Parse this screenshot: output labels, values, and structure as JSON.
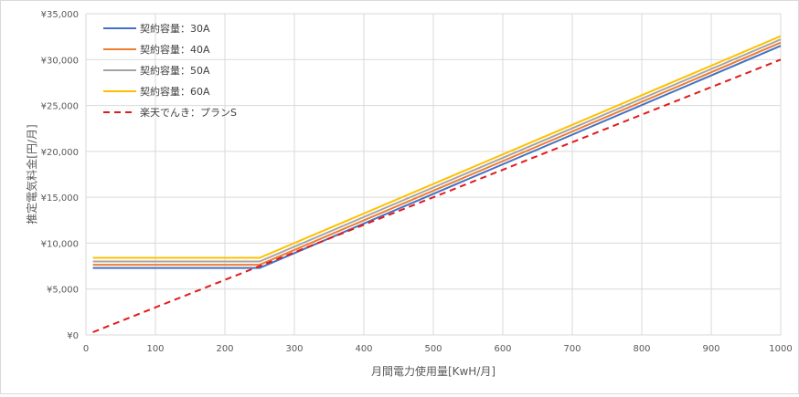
{
  "chart_data": {
    "type": "line",
    "xlabel": "月間電力使用量[KwH/月]",
    "ylabel": "推定電気料金[円/月]",
    "xlim": [
      0,
      1000
    ],
    "ylim": [
      0,
      35000
    ],
    "x_ticks": [
      "0",
      "100",
      "200",
      "300",
      "400",
      "500",
      "600",
      "700",
      "800",
      "900",
      "1000"
    ],
    "y_ticks": [
      "¥0",
      "¥5,000",
      "¥10,000",
      "¥15,000",
      "¥20,000",
      "¥25,000",
      "¥30,000",
      "¥35,000"
    ],
    "grid": true,
    "legend_position": "top-left",
    "series": [
      {
        "name": "契約容量：30A",
        "color": "#4472c4",
        "dash": false,
        "x": [
          10,
          250,
          1000
        ],
        "y": [
          7300,
          7300,
          31500
        ]
      },
      {
        "name": "契約容量：40A",
        "color": "#ed7d31",
        "dash": false,
        "x": [
          10,
          250,
          1000
        ],
        "y": [
          7650,
          7650,
          31850
        ]
      },
      {
        "name": "契約容量：50A",
        "color": "#a5a5a5",
        "dash": false,
        "x": [
          10,
          250,
          1000
        ],
        "y": [
          8000,
          8000,
          32200
        ]
      },
      {
        "name": "契約容量：60A",
        "color": "#ffc000",
        "dash": false,
        "x": [
          10,
          250,
          1000
        ],
        "y": [
          8400,
          8400,
          32550
        ]
      },
      {
        "name": "楽天でんき：プランS",
        "color": "#e31a1c",
        "dash": true,
        "x": [
          10,
          1000
        ],
        "y": [
          300,
          30000
        ]
      }
    ]
  }
}
